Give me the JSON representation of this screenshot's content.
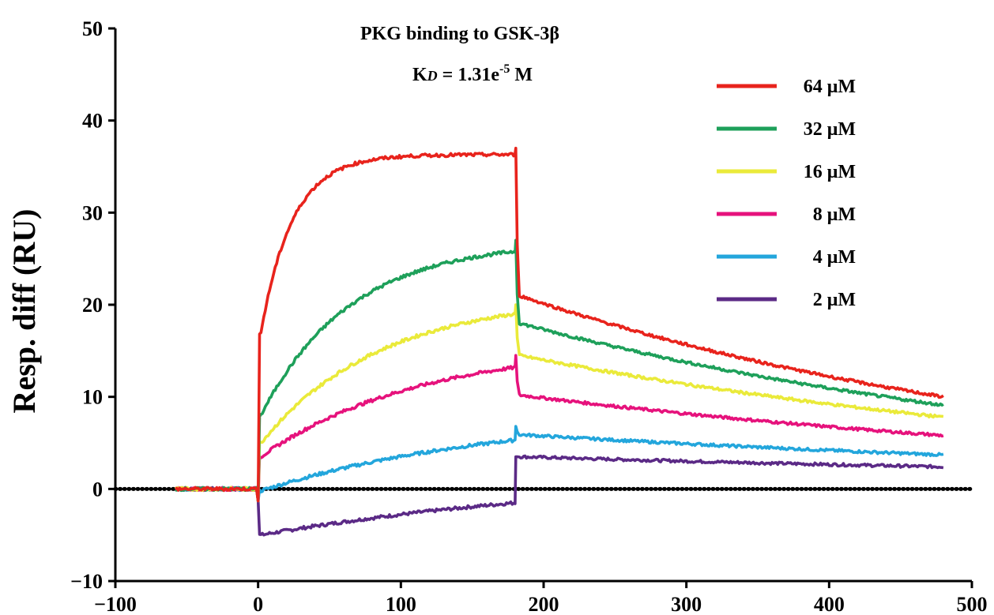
{
  "chart_data": {
    "type": "line",
    "title": "PKG binding to GSK-3β",
    "annotation": {
      "prefix": "K",
      "subscript": "D",
      "mid": " = 1.31e",
      "sup": "-5",
      "suffix": " M"
    },
    "xlabel": "",
    "ylabel": "Resp. diff (RU)",
    "xlim": [
      -100,
      500
    ],
    "ylim": [
      -10,
      50
    ],
    "x_ticks": [
      -100,
      0,
      100,
      200,
      300,
      400,
      500
    ],
    "x_tick_labels": [
      "−100",
      "0",
      "100",
      "200",
      "300",
      "400",
      "500"
    ],
    "y_ticks": [
      -10,
      0,
      10,
      20,
      30,
      40,
      50
    ],
    "y_tick_labels": [
      "−10",
      "0",
      "10",
      "20",
      "30",
      "40",
      "50"
    ],
    "baseline": {
      "y": 0,
      "x_range": [
        -100,
        500
      ],
      "style": "dotted"
    },
    "legend_position": "top-right",
    "injection_start": 0,
    "injection_end": 180,
    "run_start": -58,
    "run_end": 480,
    "series": [
      {
        "name": "64 μM",
        "color": "#e8231c",
        "spike": 37.0,
        "plateau_start": 17.0,
        "plateau_end": 36.3,
        "assoc_rate": 0.045,
        "drop_to": 21.0,
        "end_value": 10.0
      },
      {
        "name": "32 μM",
        "color": "#1ea05a",
        "spike": 27.0,
        "plateau_start": 8.0,
        "plateau_end": 25.8,
        "assoc_rate": 0.016,
        "drop_to": 18.0,
        "end_value": 9.1
      },
      {
        "name": "16 μM",
        "color": "#eaea3a",
        "spike": 20.0,
        "plateau_start": 5.0,
        "plateau_end": 19.0,
        "assoc_rate": 0.012,
        "drop_to": 14.5,
        "end_value": 7.8
      },
      {
        "name": " 8 μM",
        "color": "#e6127c",
        "spike": 14.5,
        "plateau_start": 3.5,
        "plateau_end": 13.2,
        "assoc_rate": 0.009,
        "drop_to": 10.2,
        "end_value": 5.8
      },
      {
        "name": " 4 μM",
        "color": "#23a6dc",
        "spike": 6.8,
        "plateau_start": -0.2,
        "plateau_end": 5.3,
        "assoc_rate": 0.006,
        "drop_to": 5.9,
        "end_value": 3.7
      },
      {
        "name": " 2 μM",
        "color": "#5b2a86",
        "spike": 3.5,
        "plateau_start": -5.0,
        "plateau_end": -1.5,
        "assoc_rate": 0.004,
        "drop_to": 3.5,
        "end_value": 2.4
      }
    ]
  }
}
